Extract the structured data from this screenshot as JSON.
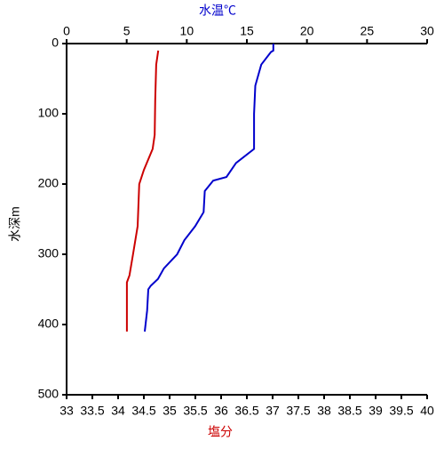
{
  "chart_data": {
    "type": "line",
    "ylabel": "水深m",
    "ylim": [
      0,
      500
    ],
    "yticks": [
      0,
      100,
      200,
      300,
      400,
      500
    ],
    "y_inverted": true,
    "x_top": {
      "label": "水温℃",
      "color": "#0000cc",
      "lim": [
        0,
        30
      ],
      "ticks": [
        0,
        5,
        10,
        15,
        20,
        25,
        30
      ]
    },
    "x_bottom": {
      "label": "塩分",
      "color": "#cc0000",
      "lim": [
        33,
        40
      ],
      "ticks": [
        33,
        33.5,
        34,
        34.5,
        35,
        35.5,
        36,
        36.5,
        37,
        37.5,
        38,
        38.5,
        39,
        39.5,
        40
      ]
    },
    "series": [
      {
        "axis": "x_top",
        "color": "#0000cc",
        "x": [
          17.2,
          17.2,
          17.0,
          16.2,
          15.7,
          15.6,
          15.6,
          14.1,
          13.3,
          12.2,
          11.5,
          11.4,
          10.7,
          9.8,
          9.2,
          8.1,
          7.6,
          7.0,
          6.8,
          6.7,
          6.5
        ],
        "y": [
          0,
          10,
          12,
          30,
          60,
          100,
          150,
          170,
          190,
          195,
          210,
          240,
          260,
          280,
          300,
          320,
          335,
          345,
          350,
          380,
          410
        ]
      },
      {
        "axis": "x_bottom",
        "color": "#cc0000",
        "x": [
          34.78,
          34.74,
          34.72,
          34.71,
          34.67,
          34.5,
          34.41,
          34.38,
          34.29,
          34.22,
          34.17,
          34.17
        ],
        "y": [
          10,
          30,
          80,
          130,
          150,
          180,
          200,
          260,
          300,
          330,
          340,
          410
        ]
      }
    ]
  }
}
